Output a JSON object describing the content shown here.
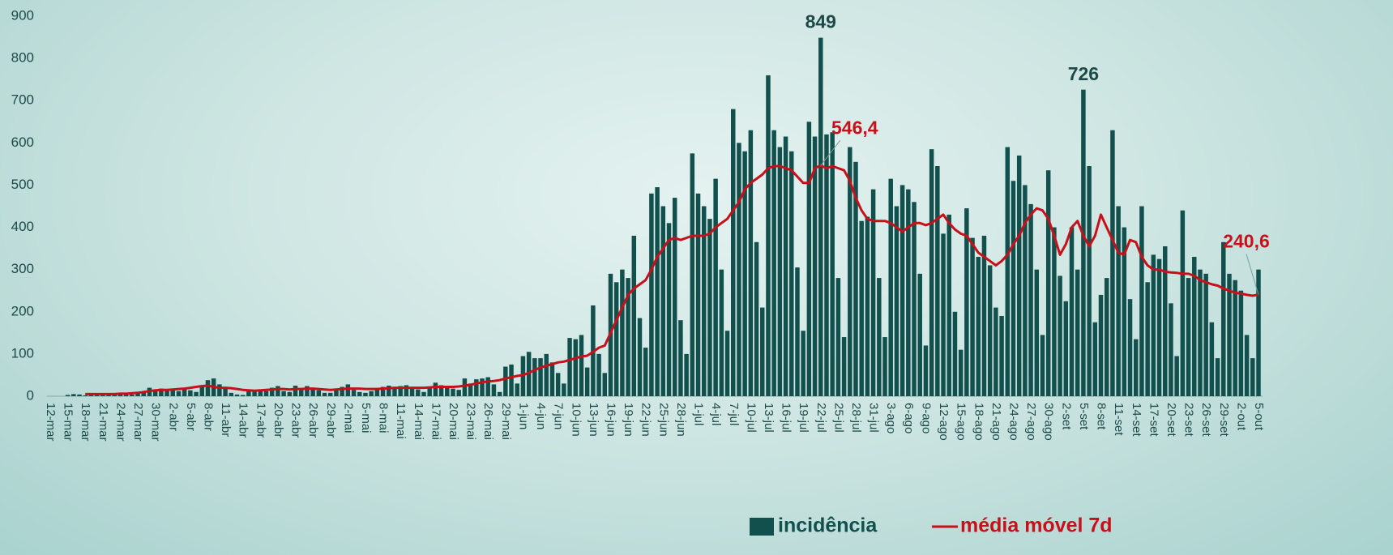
{
  "chart_data": {
    "type": "bar",
    "categories": [
      "12-mar",
      null,
      null,
      "15-mar",
      null,
      null,
      "18-mar",
      null,
      null,
      "21-mar",
      null,
      null,
      "24-mar",
      null,
      null,
      "27-mar",
      null,
      null,
      "30-mar",
      null,
      null,
      "2-abr",
      null,
      null,
      "5-abr",
      null,
      null,
      "8-abr",
      null,
      null,
      "11-abr",
      null,
      null,
      "14-abr",
      null,
      null,
      "17-abr",
      null,
      null,
      "20-abr",
      null,
      null,
      "23-abr",
      null,
      null,
      "26-abr",
      null,
      null,
      "29-abr",
      null,
      null,
      "2-mai",
      null,
      null,
      "5-mai",
      null,
      null,
      "8-mai",
      null,
      null,
      "11-mai",
      null,
      null,
      "14-mai",
      null,
      null,
      "17-mai",
      null,
      null,
      "20-mai",
      null,
      null,
      "23-mai",
      null,
      null,
      "26-mai",
      null,
      null,
      "29-mai",
      null,
      null,
      "1-jun",
      null,
      null,
      "4-jun",
      null,
      null,
      "7-jun",
      null,
      null,
      "10-jun",
      null,
      null,
      "13-jun",
      null,
      null,
      "16-jun",
      null,
      null,
      "19-jun",
      null,
      null,
      "22-jun",
      null,
      null,
      "25-jun",
      null,
      null,
      "28-jun",
      null,
      null,
      "1-jul",
      null,
      null,
      "4-jul",
      null,
      null,
      "7-jul",
      null,
      null,
      "10-jul",
      null,
      null,
      "13-jul",
      null,
      null,
      "16-jul",
      null,
      null,
      "19-jul",
      null,
      null,
      "22-jul",
      null,
      null,
      "25-jul",
      null,
      null,
      "28-jul",
      null,
      null,
      "31-jul",
      null,
      null,
      "3-ago",
      null,
      null,
      "6-ago",
      null,
      null,
      "9-ago",
      null,
      null,
      "12-ago",
      null,
      null,
      "15-ago",
      null,
      null,
      "18-ago",
      null,
      null,
      "21-ago",
      null,
      null,
      "24-ago",
      null,
      null,
      "27-ago",
      null,
      null,
      "30-ago",
      null,
      null,
      "2-set",
      null,
      null,
      "5-set",
      null,
      null,
      "8-set",
      null,
      null,
      "11-set",
      null,
      null,
      "14-set",
      null,
      null,
      "17-set",
      null,
      null,
      "20-set",
      null,
      null,
      "23-set",
      null,
      null,
      "26-set",
      null,
      null,
      "29-set",
      null,
      null,
      "2-out",
      null,
      null,
      "5-out"
    ],
    "series": [
      {
        "name": "incidência",
        "type": "bar",
        "color": "#12504d",
        "values": [
          0,
          0,
          0,
          3,
          5,
          4,
          2,
          3,
          3,
          4,
          5,
          4,
          5,
          6,
          4,
          8,
          10,
          20,
          15,
          18,
          15,
          18,
          12,
          16,
          14,
          10,
          22,
          38,
          42,
          28,
          20,
          8,
          4,
          3,
          12,
          14,
          15,
          12,
          20,
          24,
          12,
          10,
          25,
          18,
          24,
          20,
          14,
          8,
          8,
          18,
          22,
          28,
          15,
          10,
          8,
          12,
          18,
          22,
          25,
          18,
          24,
          26,
          20,
          16,
          10,
          22,
          32,
          26,
          22,
          18,
          15,
          42,
          30,
          40,
          42,
          45,
          28,
          10,
          70,
          75,
          30,
          95,
          105,
          90,
          90,
          100,
          80,
          55,
          30,
          138,
          135,
          145,
          68,
          215,
          100,
          55,
          290,
          270,
          300,
          280,
          380,
          185,
          115,
          480,
          495,
          450,
          410,
          470,
          180,
          100,
          575,
          480,
          450,
          420,
          515,
          300,
          155,
          680,
          600,
          580,
          630,
          365,
          210,
          760,
          630,
          590,
          615,
          580,
          305,
          155,
          650,
          615,
          849,
          620,
          625,
          280,
          140,
          590,
          555,
          415,
          425,
          490,
          280,
          140,
          515,
          450,
          500,
          490,
          460,
          290,
          120,
          585,
          545,
          385,
          430,
          200,
          110,
          445,
          375,
          330,
          380,
          310,
          210,
          190,
          590,
          510,
          570,
          500,
          455,
          300,
          145,
          535,
          400,
          285,
          225,
          400,
          300,
          726,
          545,
          175,
          240,
          280,
          630,
          450,
          400,
          230,
          135,
          450,
          270,
          335,
          325,
          355,
          220,
          95,
          440,
          280,
          330,
          300,
          290,
          175,
          90,
          365,
          290,
          275,
          250,
          145,
          90,
          300
        ],
        "value_labels": [
          null,
          null,
          null,
          null,
          null,
          null,
          null,
          null,
          null,
          null,
          null,
          null,
          null,
          null,
          null,
          null,
          null,
          null,
          null,
          null,
          null,
          null,
          null,
          null,
          null,
          null,
          null,
          null,
          null,
          null,
          null,
          null,
          null,
          null,
          null,
          null,
          null,
          null,
          null,
          null,
          null,
          null,
          null,
          null,
          null,
          null,
          null,
          null,
          null,
          null,
          null,
          null,
          null,
          null,
          null,
          null,
          null,
          null,
          null,
          null,
          null,
          null,
          null,
          null,
          null,
          null,
          null,
          null,
          null,
          null,
          null,
          null,
          null,
          null,
          null,
          null,
          null,
          null,
          null,
          null,
          null,
          null,
          null,
          null,
          null,
          null,
          null,
          null,
          null,
          null,
          null,
          null,
          null,
          null,
          null,
          null,
          null,
          null,
          null,
          null,
          null,
          null,
          null,
          null,
          null,
          null,
          null,
          null,
          null,
          null,
          null,
          null,
          null,
          null,
          null,
          null,
          null,
          null,
          null,
          null,
          null,
          null,
          null,
          null,
          null,
          null,
          null,
          null,
          null,
          null,
          null,
          null,
          "849",
          null,
          null,
          null,
          null,
          null,
          null,
          null,
          null,
          null,
          null,
          null,
          null,
          null,
          null,
          null,
          null,
          null,
          null,
          null,
          null,
          null,
          null,
          null,
          null,
          null,
          null,
          null,
          null,
          null,
          null,
          null,
          null,
          null,
          null,
          null,
          null,
          null,
          null,
          null,
          null,
          null,
          null,
          null,
          null,
          "726",
          null,
          null,
          null,
          null,
          null,
          null,
          null,
          null,
          null,
          null,
          null,
          null,
          null,
          null,
          null,
          null,
          null,
          null,
          null,
          null,
          null,
          null,
          null,
          null,
          null,
          null,
          null,
          null,
          null,
          null
        ]
      },
      {
        "name": "média móvel 7d",
        "type": "line",
        "color": "#c8101a",
        "values": [
          null,
          null,
          null,
          null,
          null,
          null,
          5,
          5,
          5,
          5,
          5,
          5,
          6,
          6,
          7,
          8,
          10,
          12,
          14,
          15,
          15,
          16,
          17,
          18,
          20,
          22,
          24,
          25,
          22,
          20,
          20,
          19,
          17,
          15,
          14,
          13,
          14,
          15,
          16,
          17,
          17,
          16,
          17,
          17,
          18,
          18,
          17,
          16,
          15,
          16,
          17,
          18,
          18,
          18,
          17,
          17,
          17,
          18,
          19,
          20,
          20,
          20,
          20,
          20,
          20,
          21,
          22,
          22,
          22,
          22,
          23,
          25,
          27,
          30,
          33,
          35,
          36,
          38,
          42,
          45,
          48,
          50,
          55,
          62,
          68,
          72,
          76,
          80,
          82,
          86,
          90,
          94,
          96,
          105,
          115,
          120,
          150,
          180,
          210,
          240,
          255,
          265,
          275,
          300,
          330,
          350,
          370,
          375,
          370,
          375,
          380,
          380,
          380,
          385,
          400,
          410,
          420,
          440,
          460,
          490,
          505,
          515,
          525,
          540,
          545,
          545,
          540,
          535,
          520,
          505,
          505,
          540,
          546.4,
          540,
          545,
          540,
          535,
          510,
          470,
          440,
          420,
          415,
          415,
          415,
          410,
          400,
          390,
          400,
          410,
          410,
          405,
          410,
          420,
          430,
          410,
          395,
          385,
          380,
          360,
          340,
          330,
          320,
          310,
          320,
          335,
          360,
          380,
          410,
          430,
          445,
          440,
          420,
          380,
          335,
          360,
          400,
          415,
          380,
          355,
          380,
          430,
          400,
          370,
          340,
          335,
          370,
          365,
          330,
          310,
          300,
          300,
          295,
          293,
          292,
          290,
          290,
          285,
          275,
          270,
          265,
          262,
          255,
          250,
          245,
          243,
          240,
          238,
          240.6
        ],
        "value_labels": [
          null,
          null,
          null,
          null,
          null,
          null,
          null,
          null,
          null,
          null,
          null,
          null,
          null,
          null,
          null,
          null,
          null,
          null,
          null,
          null,
          null,
          null,
          null,
          null,
          null,
          null,
          null,
          null,
          null,
          null,
          null,
          null,
          null,
          null,
          null,
          null,
          null,
          null,
          null,
          null,
          null,
          null,
          null,
          null,
          null,
          null,
          null,
          null,
          null,
          null,
          null,
          null,
          null,
          null,
          null,
          null,
          null,
          null,
          null,
          null,
          null,
          null,
          null,
          null,
          null,
          null,
          null,
          null,
          null,
          null,
          null,
          null,
          null,
          null,
          null,
          null,
          null,
          null,
          null,
          null,
          null,
          null,
          null,
          null,
          null,
          null,
          null,
          null,
          null,
          null,
          null,
          null,
          null,
          null,
          null,
          null,
          null,
          null,
          null,
          null,
          null,
          null,
          null,
          null,
          null,
          null,
          null,
          null,
          null,
          null,
          null,
          null,
          null,
          null,
          null,
          null,
          null,
          null,
          null,
          null,
          null,
          null,
          null,
          null,
          null,
          null,
          null,
          null,
          null,
          null,
          null,
          null,
          "546,4",
          null,
          null,
          null,
          null,
          null,
          null,
          null,
          null,
          null,
          null,
          null,
          null,
          null,
          null,
          null,
          null,
          null,
          null,
          null,
          null,
          null,
          null,
          null,
          null,
          null,
          null,
          null,
          null,
          null,
          null,
          null,
          null,
          null,
          null,
          null,
          null,
          null,
          null,
          null,
          null,
          null,
          null,
          null,
          null,
          null,
          null,
          null,
          null,
          null,
          null,
          null,
          null,
          null,
          null,
          null,
          null,
          null,
          null,
          null,
          null,
          null,
          null,
          null,
          null,
          null,
          null,
          null,
          null,
          null,
          null,
          null,
          null,
          null,
          null,
          "240,6"
        ]
      }
    ],
    "ylim": [
      0,
      900
    ],
    "yticks": [
      0,
      100,
      200,
      300,
      400,
      500,
      600,
      700,
      800,
      900
    ],
    "grid": false,
    "legend": "bottom"
  }
}
